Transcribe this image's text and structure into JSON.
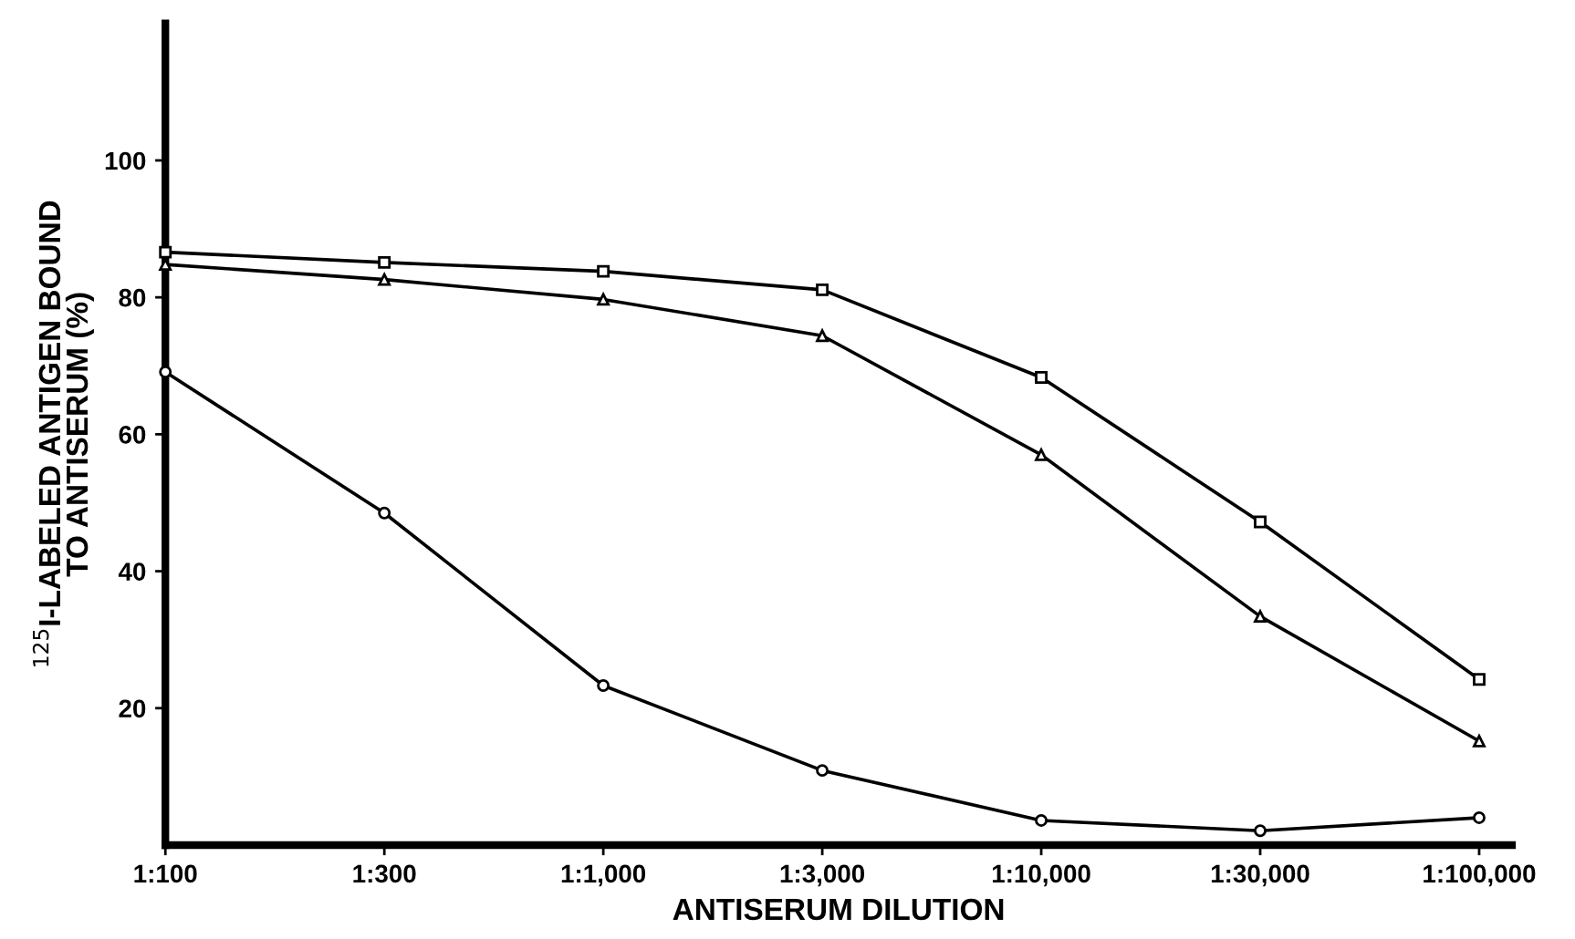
{
  "chart_data": {
    "type": "line",
    "xlabel": "ANTISERUM DILUTION",
    "ylabel": "$^{125}$I-LABELED ANTIGEN BOUND\nTO ANTISERUM (%)",
    "categories": [
      "1:100",
      "1:300",
      "1:1,000",
      "1:3,000",
      "1:10,000",
      "1:30,000",
      "1:100,000"
    ],
    "series": [
      {
        "color": "#000000",
        "marker": "square",
        "values": [
          86.6,
          85.1,
          83.8,
          81.1,
          68.3,
          47.2,
          24.2
        ]
      },
      {
        "color": "#000000",
        "marker": "triangle",
        "values": [
          84.8,
          82.6,
          79.7,
          74.4,
          57.0,
          33.4,
          15.2
        ]
      },
      {
        "color": "#000000",
        "marker": "circle",
        "values": [
          69.1,
          48.5,
          23.3,
          10.9,
          3.6,
          2.1,
          4.0
        ]
      }
    ],
    "ylim": [
      0,
      120
    ],
    "yticks": [
      20,
      40,
      60,
      80,
      100
    ],
    "grid": false,
    "legend": false,
    "line_style": "solid"
  }
}
